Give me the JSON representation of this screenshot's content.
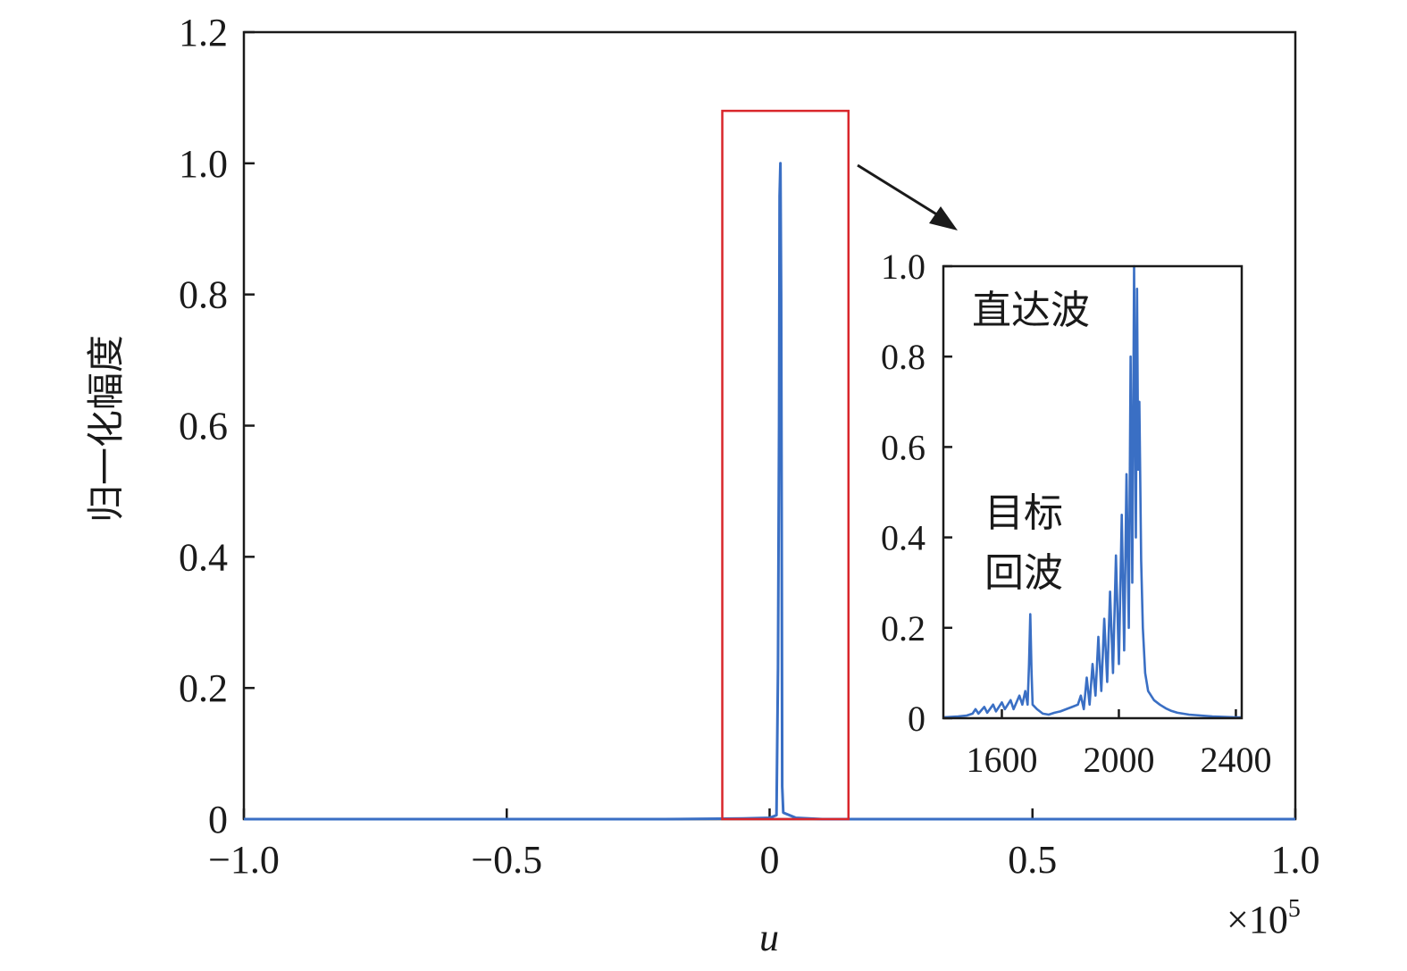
{
  "chart_data": {
    "type": "line",
    "main": {
      "xlabel": "u",
      "ylabel": "归一化幅度",
      "xlim": [
        -1.0,
        1.0
      ],
      "ylim": [
        0,
        1.2
      ],
      "x_multiplier_label": "×10",
      "x_multiplier_exp": "5",
      "x_ticks": [
        {
          "value": -1.0,
          "label": "−1.0"
        },
        {
          "value": -0.5,
          "label": "−0.5"
        },
        {
          "value": 0,
          "label": "0"
        },
        {
          "value": 0.5,
          "label": "0.5"
        },
        {
          "value": 1.0,
          "label": "1.0"
        }
      ],
      "y_ticks": [
        {
          "value": 0,
          "label": "0"
        },
        {
          "value": 0.2,
          "label": "0.2"
        },
        {
          "value": 0.4,
          "label": "0.4"
        },
        {
          "value": 0.6,
          "label": "0.6"
        },
        {
          "value": 0.8,
          "label": "0.8"
        },
        {
          "value": 1.0,
          "label": "1.0"
        },
        {
          "value": 1.2,
          "label": "1.2"
        }
      ],
      "series": [
        {
          "color": "#3a6fc4",
          "points": [
            [
              -1.0,
              0.0
            ],
            [
              -0.2,
              0.0
            ],
            [
              -0.05,
              0.001
            ],
            [
              0.0,
              0.002
            ],
            [
              0.013,
              0.006
            ],
            [
              0.016,
              0.23
            ],
            [
              0.018,
              0.6
            ],
            [
              0.019,
              0.95
            ],
            [
              0.0205,
              1.0
            ],
            [
              0.022,
              0.8
            ],
            [
              0.023,
              0.47
            ],
            [
              0.024,
              0.05
            ],
            [
              0.026,
              0.01
            ],
            [
              0.05,
              0.002
            ],
            [
              0.1,
              0.0
            ],
            [
              1.0,
              0.0
            ]
          ]
        }
      ],
      "highlight_box": {
        "x_range": [
          -0.09,
          0.15
        ],
        "y_range": [
          0,
          1.08
        ],
        "color": "#d9262b"
      }
    },
    "inset": {
      "xlim": [
        1400,
        2420
      ],
      "ylim": [
        0,
        1.0
      ],
      "x_ticks": [
        {
          "value": 1600,
          "label": "1600"
        },
        {
          "value": 2000,
          "label": "2000"
        },
        {
          "value": 2400,
          "label": "2400"
        }
      ],
      "y_ticks": [
        {
          "value": 0,
          "label": "0"
        },
        {
          "value": 0.2,
          "label": "0.2"
        },
        {
          "value": 0.4,
          "label": "0.4"
        },
        {
          "value": 0.6,
          "label": "0.6"
        },
        {
          "value": 0.8,
          "label": "0.8"
        },
        {
          "value": 1.0,
          "label": "1.0"
        }
      ],
      "series": [
        {
          "color": "#3a6fc4",
          "points": [
            [
              1400,
              0.002
            ],
            [
              1450,
              0.004
            ],
            [
              1480,
              0.006
            ],
            [
              1500,
              0.01
            ],
            [
              1510,
              0.02
            ],
            [
              1520,
              0.01
            ],
            [
              1540,
              0.025
            ],
            [
              1550,
              0.012
            ],
            [
              1570,
              0.03
            ],
            [
              1580,
              0.015
            ],
            [
              1600,
              0.035
            ],
            [
              1610,
              0.02
            ],
            [
              1630,
              0.04
            ],
            [
              1640,
              0.02
            ],
            [
              1660,
              0.05
            ],
            [
              1670,
              0.03
            ],
            [
              1680,
              0.06
            ],
            [
              1688,
              0.03
            ],
            [
              1693,
              0.12
            ],
            [
              1697,
              0.23
            ],
            [
              1701,
              0.11
            ],
            [
              1705,
              0.03
            ],
            [
              1720,
              0.02
            ],
            [
              1740,
              0.01
            ],
            [
              1760,
              0.008
            ],
            [
              1780,
              0.012
            ],
            [
              1800,
              0.015
            ],
            [
              1820,
              0.02
            ],
            [
              1840,
              0.025
            ],
            [
              1860,
              0.03
            ],
            [
              1870,
              0.05
            ],
            [
              1880,
              0.02
            ],
            [
              1890,
              0.09
            ],
            [
              1900,
              0.03
            ],
            [
              1910,
              0.12
            ],
            [
              1920,
              0.05
            ],
            [
              1930,
              0.18
            ],
            [
              1940,
              0.06
            ],
            [
              1950,
              0.22
            ],
            [
              1960,
              0.08
            ],
            [
              1970,
              0.28
            ],
            [
              1980,
              0.1
            ],
            [
              1990,
              0.36
            ],
            [
              2000,
              0.12
            ],
            [
              2010,
              0.45
            ],
            [
              2018,
              0.15
            ],
            [
              2026,
              0.54
            ],
            [
              2034,
              0.2
            ],
            [
              2040,
              0.8
            ],
            [
              2046,
              0.3
            ],
            [
              2052,
              1.0
            ],
            [
              2058,
              0.4
            ],
            [
              2062,
              0.95
            ],
            [
              2066,
              0.55
            ],
            [
              2070,
              0.7
            ],
            [
              2076,
              0.35
            ],
            [
              2082,
              0.2
            ],
            [
              2090,
              0.1
            ],
            [
              2100,
              0.06
            ],
            [
              2120,
              0.04
            ],
            [
              2140,
              0.03
            ],
            [
              2160,
              0.022
            ],
            [
              2180,
              0.016
            ],
            [
              2200,
              0.012
            ],
            [
              2240,
              0.008
            ],
            [
              2280,
              0.006
            ],
            [
              2320,
              0.004
            ],
            [
              2360,
              0.003
            ],
            [
              2400,
              0.002
            ],
            [
              2420,
              0.002
            ]
          ]
        }
      ],
      "annotations": {
        "direct_wave": "直达波",
        "target_echo_line1": "目标",
        "target_echo_line2": "回波"
      }
    }
  }
}
